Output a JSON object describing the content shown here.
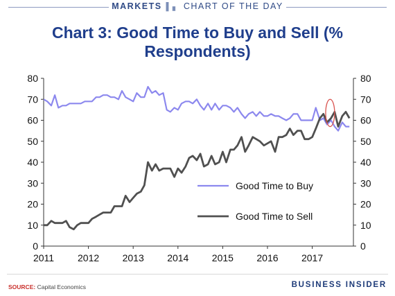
{
  "header": {
    "brand": "MARKETS",
    "separator_icon": "chart-bars-icon",
    "section": "CHART OF THE DAY"
  },
  "footer": {
    "source_label": "SOURCE:",
    "source_text": "Capital Economics",
    "publisher": "BUSINESS INSIDER"
  },
  "colors": {
    "title": "#1f3e8c",
    "buy_line": "#8c88ee",
    "sell_line": "#505050",
    "highlight_ellipse": "#d9534f",
    "source_label": "#c9302c"
  },
  "chart_data": {
    "type": "line",
    "title": "Chart 3: Good Time to Buy and Sell (% Respondents)",
    "xlabel": "",
    "ylabel": "",
    "xlim": [
      2011,
      2017.92
    ],
    "ylim": [
      0,
      80
    ],
    "y_ticks": [
      0,
      10,
      20,
      30,
      40,
      50,
      60,
      70,
      80
    ],
    "x_ticks": [
      2011,
      2012,
      2013,
      2014,
      2015,
      2016,
      2017
    ],
    "y_axis_right_mirrored": true,
    "grid": false,
    "legend_position": "lower right",
    "highlight": {
      "shape": "ellipse",
      "x_range": [
        2017.3,
        2017.5
      ],
      "y_range": [
        57,
        70
      ]
    },
    "series": [
      {
        "name": "Good Time to Buy",
        "color": "#8c88ee",
        "x": [
          2011.0,
          2011.08,
          2011.17,
          2011.25,
          2011.33,
          2011.42,
          2011.5,
          2011.58,
          2011.67,
          2011.75,
          2011.83,
          2011.92,
          2012.0,
          2012.08,
          2012.17,
          2012.25,
          2012.33,
          2012.42,
          2012.5,
          2012.58,
          2012.67,
          2012.75,
          2012.83,
          2012.92,
          2013.0,
          2013.08,
          2013.17,
          2013.25,
          2013.33,
          2013.42,
          2013.5,
          2013.58,
          2013.67,
          2013.75,
          2013.83,
          2013.92,
          2014.0,
          2014.08,
          2014.17,
          2014.25,
          2014.33,
          2014.42,
          2014.5,
          2014.58,
          2014.67,
          2014.75,
          2014.83,
          2014.92,
          2015.0,
          2015.08,
          2015.17,
          2015.25,
          2015.33,
          2015.42,
          2015.5,
          2015.58,
          2015.67,
          2015.75,
          2015.83,
          2015.92,
          2016.0,
          2016.08,
          2016.17,
          2016.25,
          2016.33,
          2016.42,
          2016.5,
          2016.58,
          2016.67,
          2016.75,
          2016.83,
          2016.92,
          2017.0,
          2017.08,
          2017.17,
          2017.25,
          2017.33,
          2017.42,
          2017.5,
          2017.58,
          2017.67,
          2017.75,
          2017.83
        ],
        "values": [
          70,
          69,
          67,
          72,
          66,
          67,
          67,
          68,
          68,
          68,
          68,
          69,
          69,
          69,
          71,
          71,
          72,
          72,
          71,
          71,
          70,
          74,
          71,
          70,
          69,
          73,
          71,
          71,
          76,
          73,
          74,
          72,
          73,
          65,
          64,
          66,
          65,
          68,
          69,
          69,
          68,
          70,
          67,
          65,
          68,
          65,
          68,
          65,
          67,
          67,
          66,
          64,
          66,
          63,
          61,
          63,
          64,
          62,
          64,
          62,
          62,
          63,
          62,
          62,
          61,
          60,
          61,
          63,
          63,
          60,
          60,
          60,
          60,
          66,
          60,
          61,
          58,
          60,
          57,
          55,
          59,
          57,
          57
        ]
      },
      {
        "name": "Good Time to Sell",
        "color": "#505050",
        "x": [
          2011.0,
          2011.08,
          2011.17,
          2011.25,
          2011.33,
          2011.42,
          2011.5,
          2011.58,
          2011.67,
          2011.75,
          2011.83,
          2011.92,
          2012.0,
          2012.08,
          2012.17,
          2012.25,
          2012.33,
          2012.42,
          2012.5,
          2012.58,
          2012.67,
          2012.75,
          2012.83,
          2012.92,
          2013.0,
          2013.08,
          2013.17,
          2013.25,
          2013.33,
          2013.42,
          2013.5,
          2013.58,
          2013.67,
          2013.75,
          2013.83,
          2013.92,
          2014.0,
          2014.08,
          2014.17,
          2014.25,
          2014.33,
          2014.42,
          2014.5,
          2014.58,
          2014.67,
          2014.75,
          2014.83,
          2014.92,
          2015.0,
          2015.08,
          2015.17,
          2015.25,
          2015.33,
          2015.42,
          2015.5,
          2015.58,
          2015.67,
          2015.75,
          2015.83,
          2015.92,
          2016.0,
          2016.08,
          2016.17,
          2016.25,
          2016.33,
          2016.42,
          2016.5,
          2016.58,
          2016.67,
          2016.75,
          2016.83,
          2016.92,
          2017.0,
          2017.08,
          2017.17,
          2017.25,
          2017.33,
          2017.42,
          2017.5,
          2017.58,
          2017.67,
          2017.75,
          2017.83
        ],
        "values": [
          10,
          10,
          12,
          11,
          11,
          11,
          12,
          9,
          8,
          10,
          11,
          11,
          11,
          13,
          14,
          15,
          16,
          16,
          16,
          19,
          19,
          19,
          24,
          21,
          23,
          25,
          26,
          29,
          40,
          36,
          39,
          36,
          37,
          37,
          37,
          33,
          37,
          35,
          38,
          42,
          43,
          41,
          44,
          38,
          39,
          43,
          39,
          40,
          45,
          40,
          46,
          46,
          48,
          52,
          45,
          48,
          52,
          51,
          50,
          48,
          49,
          50,
          45,
          52,
          52,
          53,
          56,
          53,
          55,
          55,
          51,
          51,
          52,
          56,
          61,
          63,
          59,
          61,
          64,
          57,
          62,
          64,
          61
        ]
      }
    ]
  }
}
